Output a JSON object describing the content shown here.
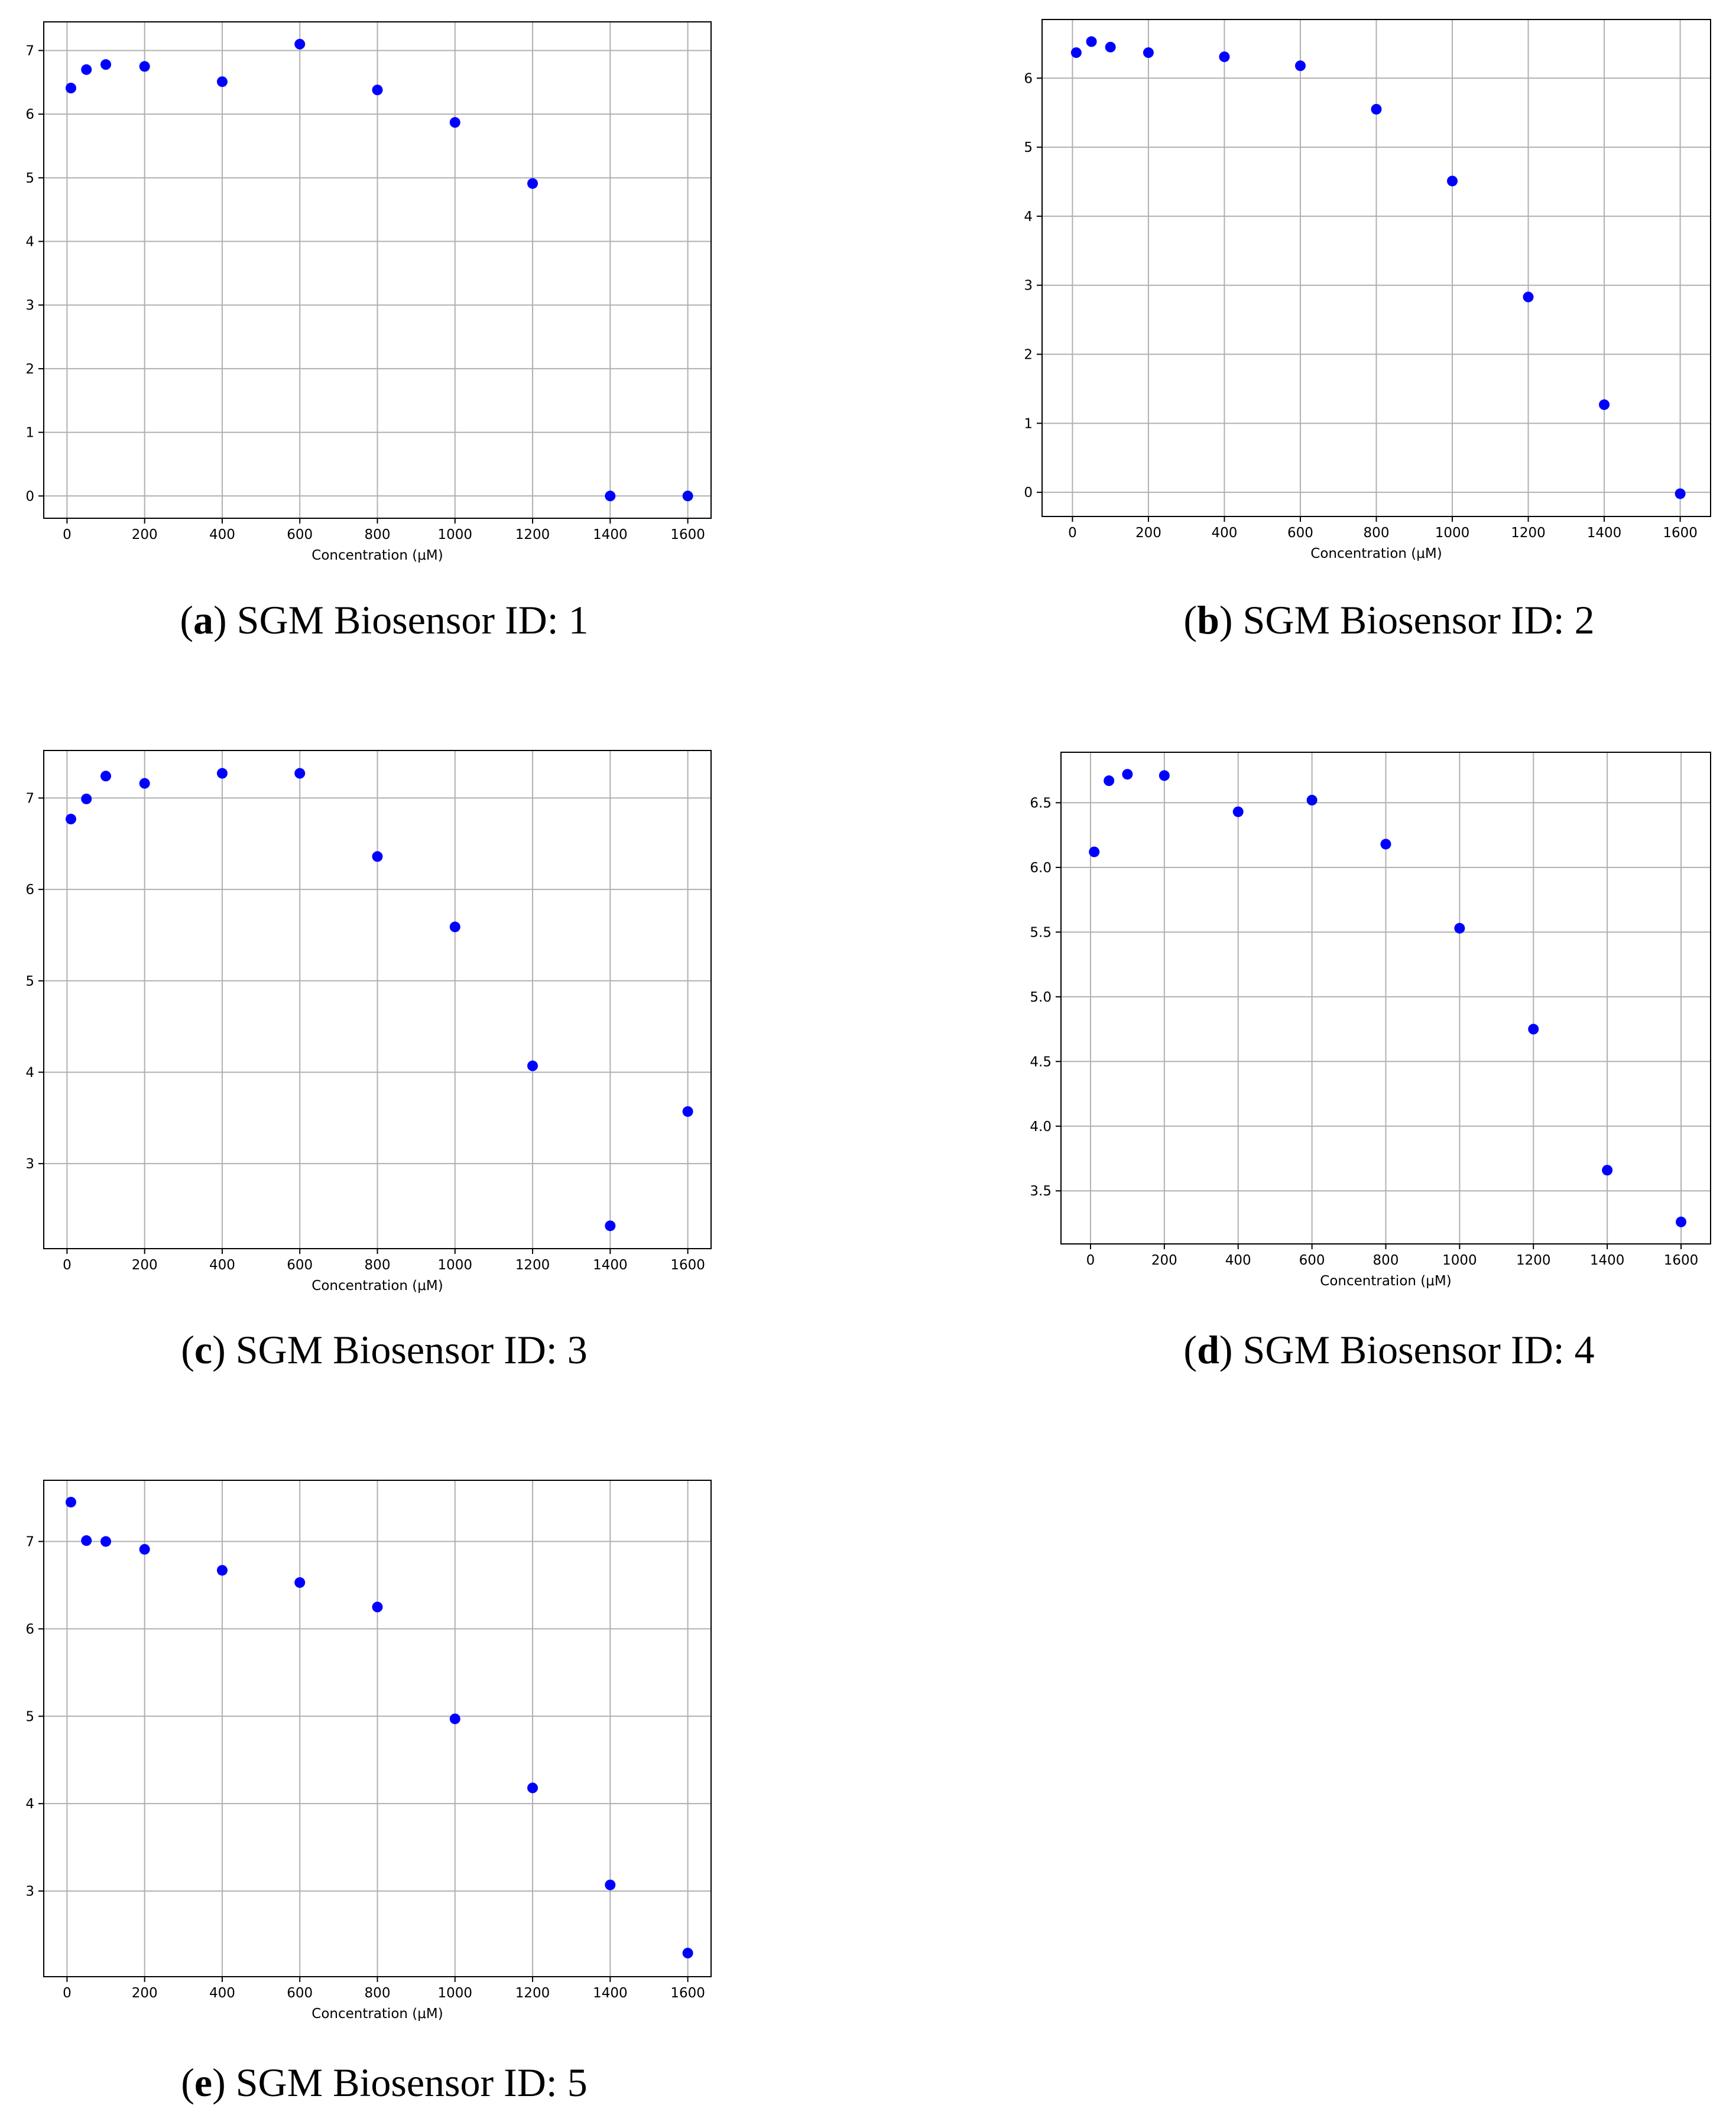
{
  "colors": {
    "marker": "#0000ff",
    "grid": "#b0b0b0",
    "frame": "#000000"
  },
  "chart_data": [
    {
      "type": "scatter",
      "panel_letter": "a",
      "caption": "SGM Biosensor ID: 1",
      "xlabel": "Concentration (μM)",
      "ylabel": "",
      "grid": true,
      "xlim": [
        -60,
        1660
      ],
      "ylim": [
        -0.35,
        7.45
      ],
      "xticks": [
        0,
        200,
        400,
        600,
        800,
        1000,
        1200,
        1400,
        1600
      ],
      "xtick_labels": [
        "0",
        "200",
        "400",
        "600",
        "800",
        "1000",
        "1200",
        "1400",
        "1600"
      ],
      "yticks": [
        0,
        1,
        2,
        3,
        4,
        5,
        6,
        7
      ],
      "ytick_labels": [
        "0",
        "1",
        "2",
        "3",
        "4",
        "5",
        "6",
        "7"
      ],
      "x": [
        10,
        50,
        100,
        200,
        400,
        600,
        800,
        1000,
        1200,
        1400,
        1600
      ],
      "y": [
        6.41,
        6.7,
        6.78,
        6.75,
        6.51,
        7.1,
        6.38,
        5.87,
        4.91,
        0.0,
        0.0
      ]
    },
    {
      "type": "scatter",
      "panel_letter": "b",
      "caption": "SGM Biosensor ID: 2",
      "xlabel": "Concentration (μM)",
      "ylabel": "",
      "grid": true,
      "xlim": [
        -80,
        1680
      ],
      "ylim": [
        -0.35,
        6.85
      ],
      "xticks": [
        0,
        200,
        400,
        600,
        800,
        1000,
        1200,
        1400,
        1600
      ],
      "xtick_labels": [
        "0",
        "200",
        "400",
        "600",
        "800",
        "1000",
        "1200",
        "1400",
        "1600"
      ],
      "yticks": [
        0,
        1,
        2,
        3,
        4,
        5,
        6
      ],
      "ytick_labels": [
        "0",
        "1",
        "2",
        "3",
        "4",
        "5",
        "6"
      ],
      "x": [
        10,
        50,
        100,
        200,
        400,
        600,
        800,
        1000,
        1200,
        1400,
        1600
      ],
      "y": [
        6.37,
        6.53,
        6.45,
        6.37,
        6.31,
        6.18,
        5.55,
        4.51,
        2.83,
        1.27,
        -0.02
      ]
    },
    {
      "type": "scatter",
      "panel_letter": "c",
      "caption": "SGM Biosensor ID: 3",
      "xlabel": "Concentration (μM)",
      "ylabel": "",
      "grid": true,
      "xlim": [
        -60,
        1660
      ],
      "ylim": [
        2.07,
        7.52
      ],
      "xticks": [
        0,
        200,
        400,
        600,
        800,
        1000,
        1200,
        1400,
        1600
      ],
      "xtick_labels": [
        "0",
        "200",
        "400",
        "600",
        "800",
        "1000",
        "1200",
        "1400",
        "1600"
      ],
      "yticks": [
        3,
        4,
        5,
        6,
        7
      ],
      "ytick_labels": [
        "3",
        "4",
        "5",
        "6",
        "7"
      ],
      "x": [
        10,
        50,
        100,
        200,
        400,
        600,
        800,
        1000,
        1200,
        1400,
        1600
      ],
      "y": [
        6.77,
        6.99,
        7.24,
        7.16,
        7.27,
        7.27,
        6.36,
        5.59,
        4.07,
        2.32,
        3.57
      ]
    },
    {
      "type": "scatter",
      "panel_letter": "d",
      "caption": "SGM Biosensor ID: 4",
      "xlabel": "Concentration (μM)",
      "ylabel": "",
      "grid": true,
      "xlim": [
        -80,
        1680
      ],
      "ylim": [
        3.09,
        6.89
      ],
      "xticks": [
        0,
        200,
        400,
        600,
        800,
        1000,
        1200,
        1400,
        1600
      ],
      "xtick_labels": [
        "0",
        "200",
        "400",
        "600",
        "800",
        "1000",
        "1200",
        "1400",
        "1600"
      ],
      "yticks": [
        3.5,
        4.0,
        4.5,
        5.0,
        5.5,
        6.0,
        6.5
      ],
      "ytick_labels": [
        "3.5",
        "4.0",
        "4.5",
        "5.0",
        "5.5",
        "6.0",
        "6.5"
      ],
      "x": [
        10,
        50,
        100,
        200,
        400,
        600,
        800,
        1000,
        1200,
        1400,
        1600
      ],
      "y": [
        6.12,
        6.67,
        6.72,
        6.71,
        6.43,
        6.52,
        6.18,
        5.53,
        4.75,
        3.66,
        3.26
      ]
    },
    {
      "type": "scatter",
      "panel_letter": "e",
      "caption": "SGM Biosensor ID: 5",
      "xlabel": "Concentration (μM)",
      "ylabel": "",
      "grid": true,
      "xlim": [
        -60,
        1660
      ],
      "ylim": [
        2.02,
        7.7
      ],
      "xticks": [
        0,
        200,
        400,
        600,
        800,
        1000,
        1200,
        1400,
        1600
      ],
      "xtick_labels": [
        "0",
        "200",
        "400",
        "600",
        "800",
        "1000",
        "1200",
        "1400",
        "1600"
      ],
      "yticks": [
        3,
        4,
        5,
        6,
        7
      ],
      "ytick_labels": [
        "3",
        "4",
        "5",
        "6",
        "7"
      ],
      "x": [
        10,
        50,
        100,
        200,
        400,
        600,
        800,
        1000,
        1200,
        1400,
        1600
      ],
      "y": [
        7.45,
        7.01,
        7.0,
        6.91,
        6.67,
        6.53,
        6.25,
        4.97,
        4.18,
        3.07,
        2.29
      ]
    }
  ]
}
